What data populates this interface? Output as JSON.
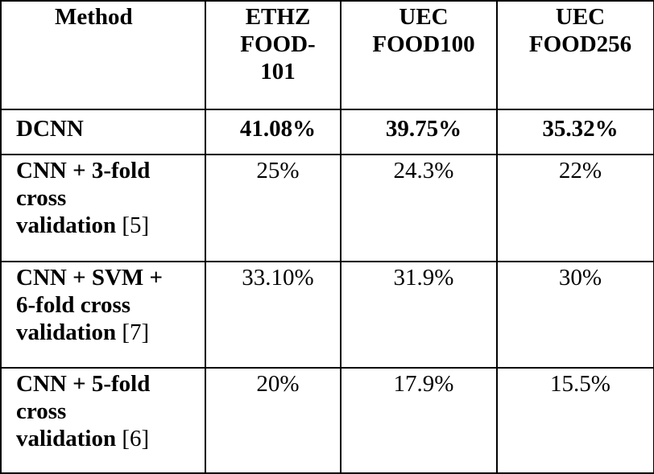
{
  "table": {
    "headers": [
      {
        "lines": [
          "Method"
        ]
      },
      {
        "lines": [
          "ETHZ",
          "FOOD-",
          "101"
        ]
      },
      {
        "lines": [
          "UEC",
          "FOOD100"
        ]
      },
      {
        "lines": [
          "UEC",
          "FOOD256"
        ]
      }
    ],
    "rows": [
      {
        "method_lines": [
          "DCNN"
        ],
        "ref": "",
        "values": [
          "41.08%",
          "39.75%",
          "35.32%"
        ],
        "bold_values": true
      },
      {
        "method_lines": [
          "CNN + 3-fold",
          "cross",
          "validation"
        ],
        "ref": "[5]",
        "values": [
          "25%",
          "24.3%",
          "22%"
        ],
        "bold_values": false
      },
      {
        "method_lines": [
          "CNN + SVM +",
          "6-fold cross",
          "validation"
        ],
        "ref": "[7]",
        "values": [
          "33.10%",
          "31.9%",
          "30%"
        ],
        "bold_values": false
      },
      {
        "method_lines": [
          "CNN + 5-fold",
          "cross",
          "validation"
        ],
        "ref": "[6]",
        "values": [
          "20%",
          "17.9%",
          "15.5%"
        ],
        "bold_values": false
      }
    ]
  }
}
